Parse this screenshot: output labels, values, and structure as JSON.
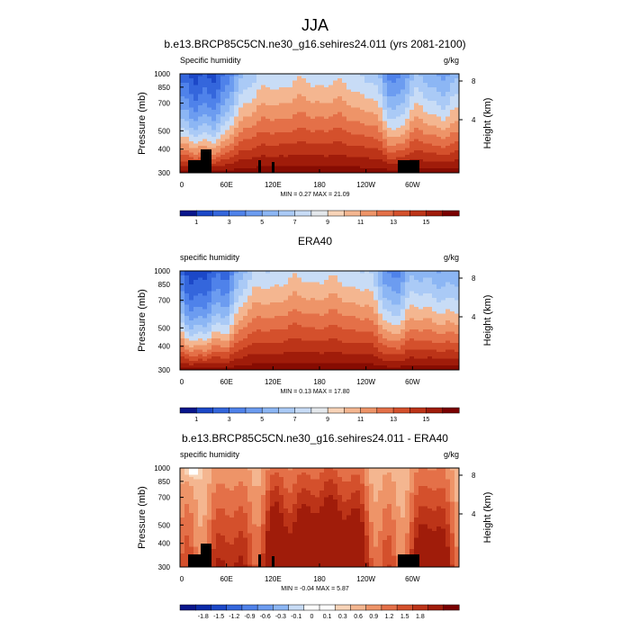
{
  "figure_title": "JJA",
  "chart_data": [
    {
      "type": "heatmap",
      "title": "b.e13.BRCP85C5CN.ne30_g16.sehires24.011 (yrs 2081-2100)",
      "left_label": "Specific humidity",
      "units": "g/kg",
      "ylabel": "Pressure (mb)",
      "ylabel_right": "Height (km)",
      "y_ticks": [
        "300",
        "400",
        "500",
        "700",
        "850",
        "1000"
      ],
      "right_ticks": [
        "8",
        "4"
      ],
      "x_ticks": [
        "0",
        "60E",
        "120E",
        "180",
        "120W",
        "60W"
      ],
      "stats_text": "MIN =   0.27  MAX =  21.09",
      "min": 0.27,
      "max": 21.09,
      "colorbar_labels": [
        "1",
        "3",
        "5",
        "7",
        "9",
        "11",
        "13",
        "15"
      ],
      "field": "q"
    },
    {
      "type": "heatmap",
      "title": "ERA40",
      "left_label": "specific humidity",
      "units": "g/kg",
      "ylabel": "Pressure (mb)",
      "ylabel_right": "Height (km)",
      "y_ticks": [
        "300",
        "400",
        "500",
        "700",
        "850",
        "1000"
      ],
      "right_ticks": [
        "8",
        "4"
      ],
      "x_ticks": [
        "0",
        "60E",
        "120E",
        "180",
        "120W",
        "60W"
      ],
      "stats_text": "MIN =   0.13  MAX =  17.80",
      "min": 0.13,
      "max": 17.8,
      "colorbar_labels": [
        "1",
        "3",
        "5",
        "7",
        "9",
        "11",
        "13",
        "15"
      ],
      "field": "q"
    },
    {
      "type": "heatmap",
      "title": "b.e13.BRCP85C5CN.ne30_g16.sehires24.011 - ERA40",
      "left_label": "specific humidity",
      "units": "g/kg",
      "ylabel": "Pressure (mb)",
      "ylabel_right": "Height (km)",
      "y_ticks": [
        "300",
        "400",
        "500",
        "700",
        "850",
        "1000"
      ],
      "right_ticks": [
        "8",
        "4"
      ],
      "x_ticks": [
        "0",
        "60E",
        "120E",
        "180",
        "120W",
        "60W"
      ],
      "stats_text": "MIN =  -0.04  MAX =   5.87",
      "min": -0.04,
      "max": 5.87,
      "colorbar_labels": [
        "-1.8",
        "-1.5",
        "-1.2",
        "-0.9",
        "-0.6",
        "-0.3",
        "-0.1",
        "0",
        "0.1",
        "0.3",
        "0.6",
        "0.9",
        "1.2",
        "1.5",
        "1.8"
      ],
      "field": "diff"
    }
  ],
  "colors": {
    "ramp": [
      "#08168c",
      "#0a2aa8",
      "#1c48c8",
      "#3466dc",
      "#4f82ea",
      "#6c9cf0",
      "#8cb6f4",
      "#aacaf6",
      "#c8dcf6",
      "#e4e8ec",
      "#f8d4b8",
      "#f4b690",
      "#ee9468",
      "#e47048",
      "#d4502c",
      "#bc3418",
      "#a01c0a",
      "#860c02",
      "#7a0000"
    ],
    "seq_bar": [
      "#08168c",
      "#1c48c8",
      "#3466dc",
      "#4f82ea",
      "#6c9cf0",
      "#8cb6f4",
      "#aacaf6",
      "#c8dcf6",
      "#e4e8ec",
      "#f8d4b8",
      "#f4b690",
      "#ee9468",
      "#e47048",
      "#d4502c",
      "#bc3418",
      "#a01c0a",
      "#7a0000"
    ],
    "diff_bar": [
      "#08168c",
      "#0a2aa8",
      "#1c48c8",
      "#3466dc",
      "#4f82ea",
      "#6c9cf0",
      "#8cb6f4",
      "#c8dcf6",
      "#ffffff",
      "#ffffff",
      "#f8d4b8",
      "#f4b690",
      "#ee9468",
      "#e47048",
      "#d4502c",
      "#bc3418",
      "#a01c0a",
      "#7a0000"
    ],
    "terrain": "#000000"
  }
}
